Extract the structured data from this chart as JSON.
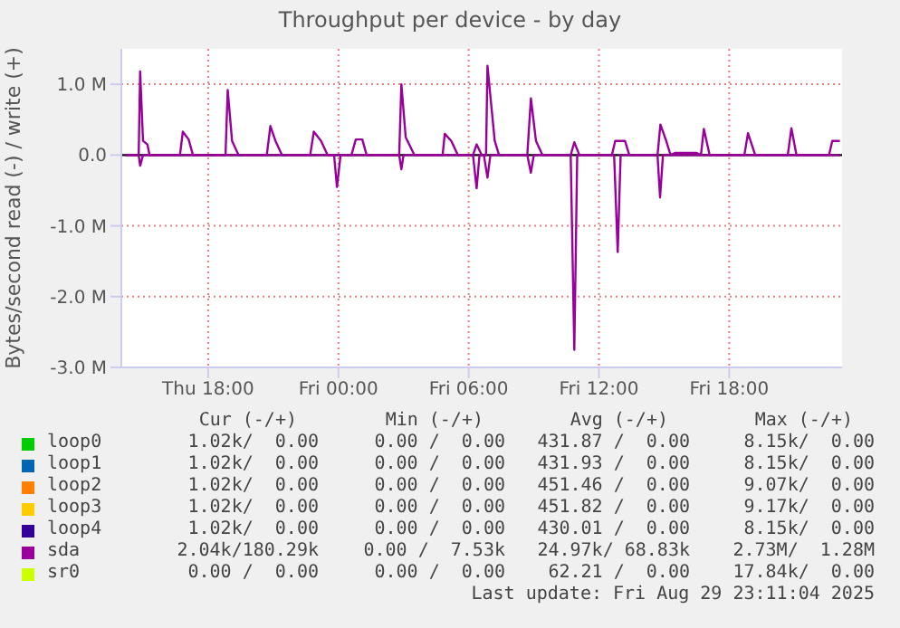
{
  "chart_data": {
    "type": "line",
    "title": "Throughput per device - by day",
    "ylabel": "Bytes/second read (-) / write (+)",
    "xlim": [
      "2025-08-28T14:00",
      "2025-08-29T23:12"
    ],
    "xticks": [
      {
        "value": "2025-08-28T18:00",
        "label": "Thu 18:00"
      },
      {
        "value": "2025-08-29T00:00",
        "label": "Fri 00:00"
      },
      {
        "value": "2025-08-29T06:00",
        "label": "Fri 06:00"
      },
      {
        "value": "2025-08-29T12:00",
        "label": "Fri 12:00"
      },
      {
        "value": "2025-08-29T18:00",
        "label": "Fri 18:00"
      }
    ],
    "ylim": [
      -3,
      1.5
    ],
    "yticks": [
      {
        "value": -3,
        "label": "-3.0 M"
      },
      {
        "value": -2,
        "label": "-2.0 M"
      },
      {
        "value": -1,
        "label": "-1.0 M"
      },
      {
        "value": 0,
        "label": "0.0"
      },
      {
        "value": 1,
        "label": "1.0 M"
      }
    ],
    "grid": true,
    "legend": "bottom",
    "line_style": "solid",
    "ref_lines": [
      {
        "axis": "y",
        "value": 0,
        "color": "#000000"
      }
    ],
    "series": [
      {
        "name": "loop0",
        "color": "#00cc00"
      },
      {
        "name": "loop1",
        "color": "#0066b3"
      },
      {
        "name": "loop2",
        "color": "#ff8000"
      },
      {
        "name": "loop3",
        "color": "#ffcc00"
      },
      {
        "name": "loop4",
        "color": "#330099"
      },
      {
        "name": "sda",
        "color": "#990099",
        "x": [
          "2025-08-28T14:12",
          "2025-08-28T14:48",
          "2025-08-28T14:52",
          "2025-08-28T15:00",
          "2025-08-28T15:12",
          "2025-08-28T15:18",
          "2025-08-28T16:42",
          "2025-08-28T16:50",
          "2025-08-28T17:06",
          "2025-08-28T17:18",
          "2025-08-28T18:48",
          "2025-08-28T18:54",
          "2025-08-28T19:06",
          "2025-08-28T19:24",
          "2025-08-28T20:42",
          "2025-08-28T20:52",
          "2025-08-28T21:06",
          "2025-08-28T21:24",
          "2025-08-28T22:42",
          "2025-08-28T22:52",
          "2025-08-28T23:12",
          "2025-08-28T23:30",
          "2025-08-29T00:36",
          "2025-08-29T00:48",
          "2025-08-29T01:06",
          "2025-08-29T01:18",
          "2025-08-29T02:48",
          "2025-08-29T02:54",
          "2025-08-29T03:06",
          "2025-08-29T03:30",
          "2025-08-29T04:48",
          "2025-08-29T04:54",
          "2025-08-29T05:12",
          "2025-08-29T05:30",
          "2025-08-29T06:12",
          "2025-08-29T06:22",
          "2025-08-29T06:36",
          "2025-08-29T06:48",
          "2025-08-29T06:52",
          "2025-08-29T07:12",
          "2025-08-29T07:24",
          "2025-08-29T08:42",
          "2025-08-29T08:52",
          "2025-08-29T09:06",
          "2025-08-29T09:24",
          "2025-08-29T10:42",
          "2025-08-29T10:52",
          "2025-08-29T11:06",
          "2025-08-29T12:36",
          "2025-08-29T12:45",
          "2025-08-29T13:12",
          "2025-08-29T13:24",
          "2025-08-29T14:42",
          "2025-08-29T14:50",
          "2025-08-29T15:06",
          "2025-08-29T15:18",
          "2025-08-29T15:30",
          "2025-08-29T16:30",
          "2025-08-29T16:42",
          "2025-08-29T16:50",
          "2025-08-29T17:06",
          "2025-08-29T18:42",
          "2025-08-29T18:52",
          "2025-08-29T19:12",
          "2025-08-29T20:42",
          "2025-08-29T20:52",
          "2025-08-29T21:06",
          "2025-08-29T22:36",
          "2025-08-29T22:45",
          "2025-08-29T23:06"
        ],
        "values": [
          0,
          0,
          1.18,
          0.2,
          0.15,
          0,
          0,
          0.33,
          0.22,
          0,
          0,
          0.92,
          0.2,
          0,
          0,
          0.41,
          0.2,
          0,
          0,
          0.33,
          0.2,
          0,
          0,
          0.22,
          0.22,
          0,
          0,
          1.0,
          0.25,
          0,
          0,
          0.3,
          0.2,
          0,
          0,
          0.15,
          0,
          0,
          1.26,
          0.2,
          0,
          0,
          0.8,
          0.2,
          0,
          0,
          0.18,
          0,
          0,
          0.2,
          0.2,
          0,
          0,
          0.43,
          0.2,
          0,
          0.03,
          0.03,
          0,
          0.37,
          0,
          0,
          0.31,
          0,
          0,
          0.38,
          0,
          0,
          0.2,
          0.2
        ]
      },
      {
        "color": "#990099",
        "x": [
          "2025-08-28T14:12",
          "2025-08-28T14:48",
          "2025-08-28T14:52",
          "2025-08-28T15:00",
          "2025-08-28T23:48",
          "2025-08-28T23:56",
          "2025-08-29T00:06",
          "2025-08-29T02:48",
          "2025-08-29T02:54",
          "2025-08-29T03:00",
          "2025-08-29T06:12",
          "2025-08-29T06:22",
          "2025-08-29T06:30",
          "2025-08-29T06:42",
          "2025-08-29T06:52",
          "2025-08-29T07:00",
          "2025-08-29T08:42",
          "2025-08-29T08:52",
          "2025-08-29T09:00",
          "2025-08-29T10:42",
          "2025-08-29T10:52",
          "2025-08-29T11:00",
          "2025-08-29T12:42",
          "2025-08-29T12:52",
          "2025-08-29T13:00",
          "2025-08-29T14:42",
          "2025-08-29T14:49",
          "2025-08-29T14:57",
          "2025-08-29T23:06"
        ],
        "values": [
          0,
          0,
          -0.15,
          0,
          0,
          -0.45,
          0,
          0,
          -0.2,
          0,
          0,
          -0.47,
          0,
          0,
          -0.32,
          0,
          0,
          -0.25,
          0,
          0,
          -2.75,
          0,
          0,
          -1.37,
          0,
          0,
          -0.6,
          0,
          0
        ]
      },
      {
        "name": "sr0",
        "color": "#ccff00"
      }
    ],
    "annotations": [
      "Cur (-/+)",
      "Min (-/+)",
      "Avg (-/+)",
      "Max (-/+)",
      "1.02k/  0.00",
      "0.00 /  0.00",
      "431.87 /  0.00",
      "8.15k/  0.00",
      "1.02k/  0.00",
      "0.00 /  0.00",
      "431.93 /  0.00",
      "8.15k/  0.00",
      "1.02k/  0.00",
      "0.00 /  0.00",
      "451.46 /  0.00",
      "9.07k/  0.00",
      "1.02k/  0.00",
      "0.00 /  0.00",
      "451.82 /  0.00",
      "9.17k/  0.00",
      "1.02k/  0.00",
      "0.00 /  0.00",
      "430.01 /  0.00",
      "8.15k/  0.00",
      "2.04k/180.29k",
      "0.00 /  7.53k",
      "24.97k/ 68.83k",
      "2.73M/  1.28M",
      "0.00 /  0.00",
      "0.00 /  0.00",
      "62.21 /  0.00",
      "17.84k/  0.00",
      "Last update: Fri Aug 29 23:11:04 2025"
    ]
  }
}
